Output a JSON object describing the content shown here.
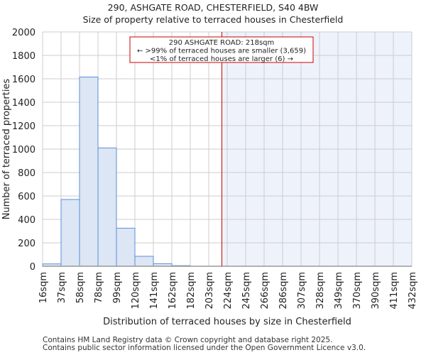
{
  "chart_data": {
    "type": "bar",
    "title": "290, ASHGATE ROAD, CHESTERFIELD, S40 4BW",
    "subtitle": "Size of property relative to terraced houses in Chesterfield",
    "xlabel": "Distribution of terraced houses by size in Chesterfield",
    "ylabel": "Number of terraced properties",
    "ylim": [
      0,
      2000
    ],
    "yticks": [
      0,
      200,
      400,
      600,
      800,
      1000,
      1200,
      1400,
      1600,
      1800,
      2000
    ],
    "xticks": [
      "16sqm",
      "37sqm",
      "58sqm",
      "78sqm",
      "99sqm",
      "120sqm",
      "141sqm",
      "162sqm",
      "182sqm",
      "203sqm",
      "224sqm",
      "245sqm",
      "266sqm",
      "286sqm",
      "307sqm",
      "328sqm",
      "349sqm",
      "370sqm",
      "390sqm",
      "411sqm",
      "432sqm"
    ],
    "values": [
      20,
      570,
      1615,
      1010,
      325,
      85,
      22,
      5,
      0,
      0,
      0,
      0,
      0,
      0,
      0,
      0,
      0,
      0,
      0,
      0
    ],
    "marker": {
      "value": 218,
      "range": [
        16,
        432
      ],
      "color": "#cc0000"
    },
    "annotation": [
      "290 ASHGATE ROAD: 218sqm",
      "← >99% of terraced houses are smaller (3,659)",
      "<1% of terraced houses are larger (6) →"
    ],
    "bar_color": "#dce6f4",
    "bar_edge": "#5b8fd6",
    "grid": true
  },
  "footer": [
    "Contains HM Land Registry data © Crown copyright and database right 2025.",
    "Contains public sector information licensed under the Open Government Licence v3.0."
  ]
}
